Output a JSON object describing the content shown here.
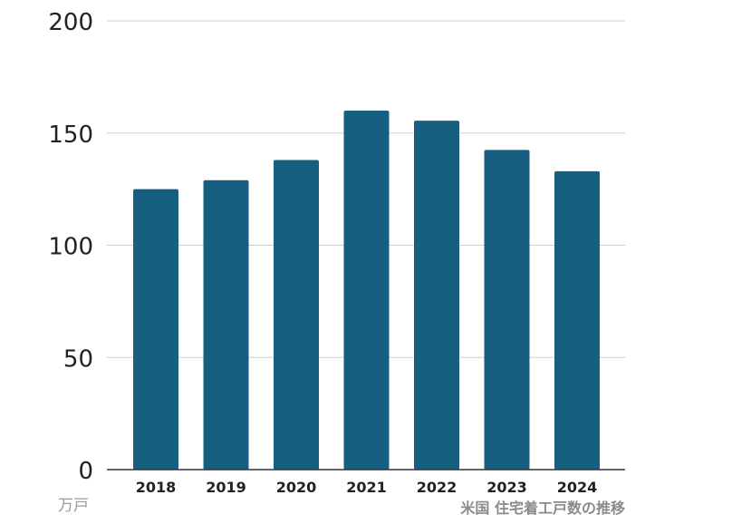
{
  "chart_data": {
    "type": "bar",
    "categories": [
      "2018",
      "2019",
      "2020",
      "2021",
      "2022",
      "2023",
      "2024"
    ],
    "values": [
      125,
      129,
      138,
      160,
      155.5,
      142.5,
      133
    ],
    "ylim": [
      0,
      200
    ],
    "yticks": [
      0,
      50,
      100,
      150,
      200
    ],
    "unit": "万戸",
    "caption": "米国 住宅着工戸数の推移",
    "bar_color": "#175f80",
    "grid": true
  }
}
